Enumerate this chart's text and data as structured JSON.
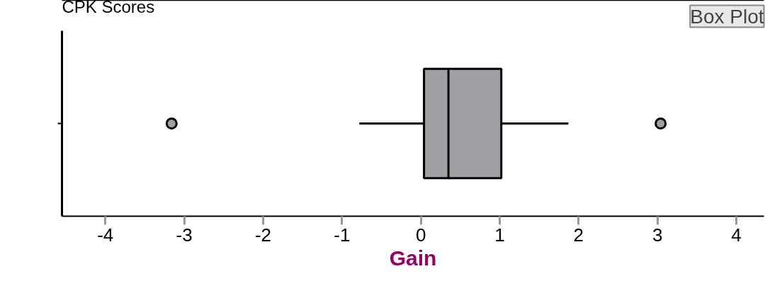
{
  "chart_data": {
    "type": "box",
    "title": "CPK Scores",
    "xlabel": "Gain",
    "orientation": "horizontal",
    "categories": [
      null
    ],
    "boxes": [
      {
        "low": -0.78,
        "q1": 0.04,
        "median": 0.35,
        "q3": 1.02,
        "high": 1.87,
        "outliers": [
          -3.16,
          3.04
        ]
      }
    ],
    "color": "#a0a0a4",
    "xlim": [
      -4.55,
      4.35
    ],
    "xticks": [
      -4,
      -3,
      -2,
      -1,
      0,
      1,
      2,
      3,
      4
    ],
    "grid": false,
    "annotations": [
      "Box Plot"
    ]
  }
}
